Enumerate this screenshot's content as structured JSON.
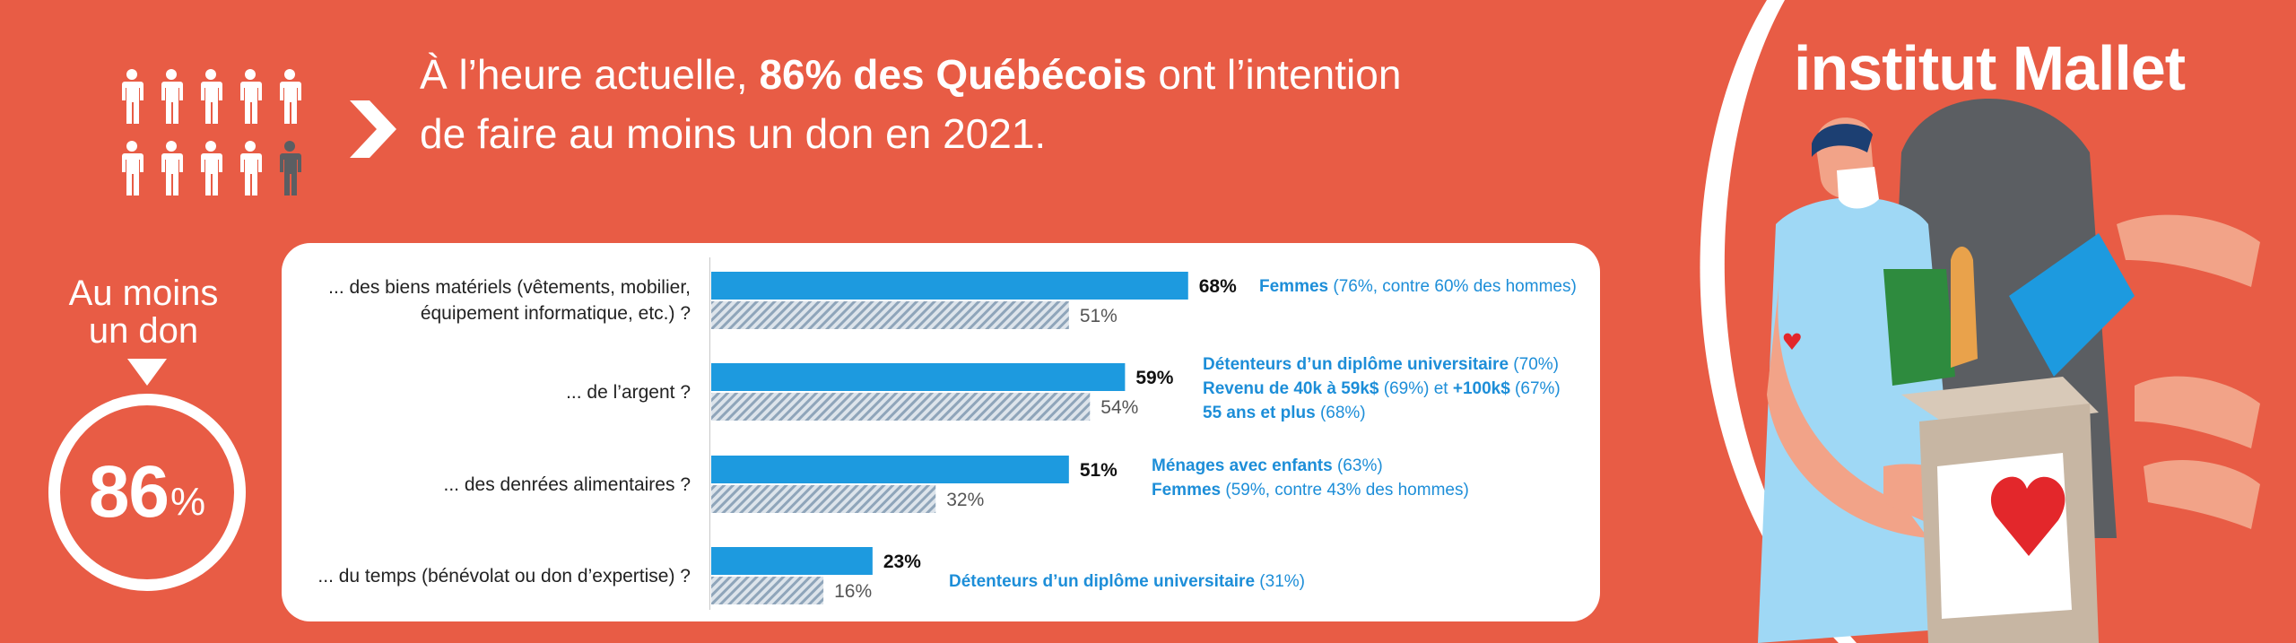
{
  "headline": {
    "part1": "À l’heure actuelle, ",
    "highlight": "86% des Québécois",
    "part2": " ont l’intention",
    "line2": "de faire au moins un don en 2021."
  },
  "left": {
    "line1": "Au moins",
    "line2": "un don",
    "pct_num": "86",
    "pct_sign": "%"
  },
  "logo": {
    "text": "institut Mallet"
  },
  "colors": {
    "background": "#E85C45",
    "current_bar": "#1D9ADF",
    "previous_bar": "#A9B9C8",
    "note_text": "#1D8ED8"
  },
  "chart_data": {
    "type": "bar",
    "orientation": "horizontal",
    "categories": [
      [
        "... des biens matériels (vêtements, mobilier,",
        "équipement informatique, etc.) ?"
      ],
      [
        "... de l’argent ?"
      ],
      [
        "... des denrées alimentaires ?"
      ],
      [
        "... du temps (bénévolat ou don d’expertise) ?"
      ]
    ],
    "series": [
      {
        "values": [
          68,
          59,
          51,
          23
        ],
        "labels": [
          "68%",
          "59%",
          "51%",
          "23%"
        ]
      },
      {
        "values": [
          51,
          54,
          32,
          16
        ],
        "labels": [
          "51%",
          "54%",
          "32%",
          "16%"
        ]
      }
    ],
    "xlim": [
      0,
      100
    ],
    "grid": false,
    "annotations": [
      [
        [
          {
            "b": "Femmes"
          },
          {
            "t": " (76%, contre 60% des hommes)"
          }
        ]
      ],
      [
        [
          {
            "b": "Détenteurs d’un diplôme universitaire"
          },
          {
            "t": " (70%)"
          }
        ],
        [
          {
            "b": "Revenu de 40k à 59k$"
          },
          {
            "t": " (69%) et "
          },
          {
            "b": "+100k$"
          },
          {
            "t": " (67%)"
          }
        ],
        [
          {
            "b": "55 ans et plus"
          },
          {
            "t": " (68%)"
          }
        ]
      ],
      [
        [
          {
            "b": "Ménages avec enfants"
          },
          {
            "t": " (63%)"
          }
        ],
        [
          {
            "b": "Femmes"
          },
          {
            "t": " (59%, contre 43% des hommes)"
          }
        ]
      ],
      [
        [
          {
            "b": "Détenteurs d’un diplôme universitaire"
          },
          {
            "t": " (31%)"
          }
        ]
      ]
    ]
  }
}
